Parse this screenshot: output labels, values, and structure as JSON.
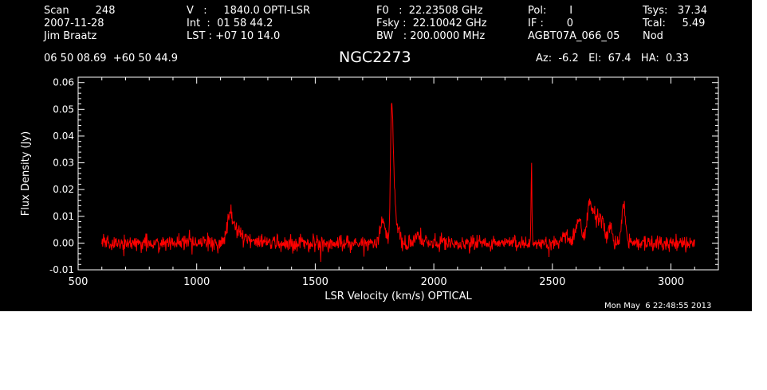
{
  "header": {
    "col1": [
      "Scan        248",
      "2007-11-28",
      "Jim Braatz"
    ],
    "col2": [
      "V   :     1840.0 OPTI-LSR",
      "Int  :  01 58 44.2",
      "LST : +07 10 14.0"
    ],
    "col3": [
      "F0   :  22.23508 GHz",
      "Fsky :  22.10042 GHz",
      "BW   : 200.0000 MHz"
    ],
    "col4": [
      "Pol:       I",
      "IF :       0",
      "AGBT07A_066_05"
    ],
    "col5": [
      "Tsys:   37.34",
      "Tcal:     5.49",
      "Nod"
    ],
    "coords": "06 50 08.69  +60 50 44.9",
    "azel": "Az:  -6.2   El:  67.4   HA:  0.33"
  },
  "title": "NGC2273",
  "timestamp": "Mon May  6 22:48:55 2013",
  "colors": {
    "background": "#000000",
    "axes": "#ffffff",
    "trace": "#ff0000"
  },
  "chart_data": {
    "type": "line",
    "xlabel": "LSR Velocity (km/s) OPTICAL",
    "ylabel": "Flux Density (Jy)",
    "xlim": [
      500,
      3200
    ],
    "ylim": [
      -0.01,
      0.062
    ],
    "xticks": [
      500,
      1000,
      1500,
      2000,
      2500,
      3000
    ],
    "yticks": [
      -0.01,
      0.0,
      0.01,
      0.02,
      0.03,
      0.04,
      0.05,
      0.06
    ],
    "ytick_labels": [
      "-0.01",
      "0.00",
      "0.01",
      "0.02",
      "0.03",
      "0.04",
      "0.05",
      "0.06"
    ],
    "x_range": [
      600,
      3100
    ],
    "noise_rms": 0.0015,
    "components": [
      {
        "center": 1140,
        "width": 12,
        "amp": 0.009
      },
      {
        "center": 1160,
        "width": 20,
        "amp": 0.004
      },
      {
        "center": 1200,
        "width": 25,
        "amp": 0.002
      },
      {
        "center": 1785,
        "width": 10,
        "amp": 0.008
      },
      {
        "center": 1822,
        "width": 5,
        "amp": 0.048
      },
      {
        "center": 1832,
        "width": 6,
        "amp": 0.02
      },
      {
        "center": 1850,
        "width": 6,
        "amp": 0.007
      },
      {
        "center": 1930,
        "width": 8,
        "amp": 0.003
      },
      {
        "center": 2412,
        "width": 2,
        "amp": 0.028
      },
      {
        "center": 2550,
        "width": 15,
        "amp": 0.003
      },
      {
        "center": 2610,
        "width": 12,
        "amp": 0.008
      },
      {
        "center": 2655,
        "width": 10,
        "amp": 0.013
      },
      {
        "center": 2680,
        "width": 14,
        "amp": 0.011
      },
      {
        "center": 2710,
        "width": 10,
        "amp": 0.008
      },
      {
        "center": 2745,
        "width": 7,
        "amp": 0.007
      },
      {
        "center": 2800,
        "width": 8,
        "amp": 0.015
      }
    ]
  }
}
